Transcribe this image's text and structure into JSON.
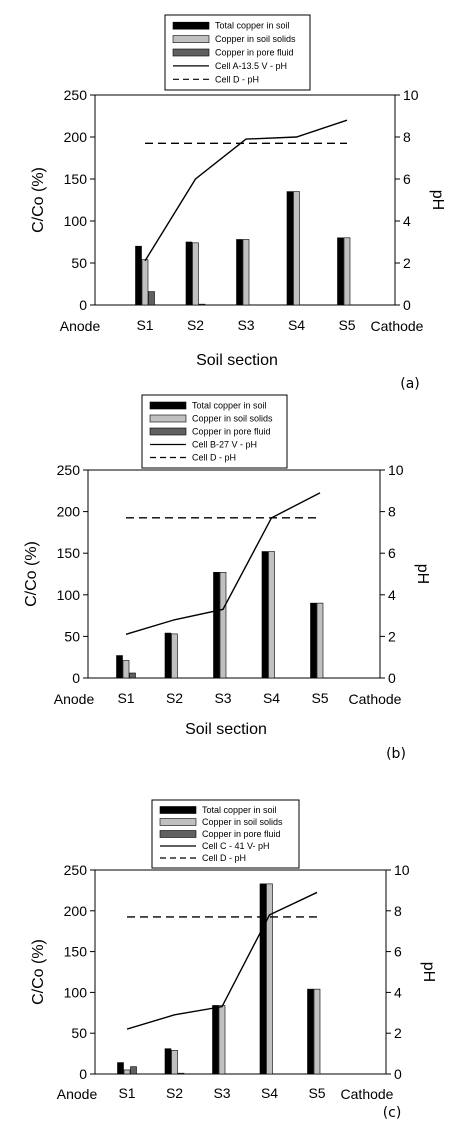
{
  "chart_data": [
    {
      "type": "bar",
      "panel_label": "(a)",
      "categories": [
        "S1",
        "S2",
        "S3",
        "S4",
        "S5"
      ],
      "x_end_labels": [
        "Anode",
        "Cathode"
      ],
      "xlabel": "Soil section",
      "ylabel": "C/Co (%)",
      "y2label": "pH",
      "ylim": [
        0,
        250
      ],
      "y2lim": [
        0,
        10
      ],
      "yticks": [
        "0",
        "50",
        "100",
        "150",
        "200",
        "250"
      ],
      "y2ticks": [
        "0",
        "2",
        "4",
        "6",
        "8",
        "10"
      ],
      "legend_position": "top",
      "series": [
        {
          "name": "Total copper in soil",
          "kind": "bar",
          "color": "#000000",
          "values": [
            70,
            75,
            78,
            135,
            80
          ]
        },
        {
          "name": "Copper in soil solids",
          "kind": "bar",
          "color": "#c0c0c0",
          "values": [
            54,
            74,
            78,
            135,
            80
          ]
        },
        {
          "name": "Copper in pore fluid",
          "kind": "bar",
          "color": "#606060",
          "values": [
            16,
            1,
            0,
            0,
            0
          ]
        },
        {
          "name": "Cell A-13.5 V - pH",
          "kind": "line",
          "style": "solid",
          "values": [
            2.1,
            6.0,
            7.9,
            8.0,
            8.8
          ]
        },
        {
          "name": "Cell D - pH",
          "kind": "line",
          "style": "dashed",
          "values": [
            7.7,
            7.7,
            7.7,
            7.7,
            7.7
          ]
        }
      ]
    },
    {
      "type": "bar",
      "panel_label": "(b)",
      "categories": [
        "S1",
        "S2",
        "S3",
        "S4",
        "S5"
      ],
      "x_end_labels": [
        "Anode",
        "Cathode"
      ],
      "xlabel": "Soil section",
      "ylabel": "C/Co (%)",
      "y2label": "pH",
      "ylim": [
        0,
        250
      ],
      "y2lim": [
        0,
        10
      ],
      "yticks": [
        "0",
        "50",
        "100",
        "150",
        "200",
        "250"
      ],
      "y2ticks": [
        "0",
        "2",
        "4",
        "6",
        "8",
        "10"
      ],
      "legend_position": "top",
      "series": [
        {
          "name": "Total copper in soil",
          "kind": "bar",
          "color": "#000000",
          "values": [
            27,
            54,
            127,
            152,
            90
          ]
        },
        {
          "name": "Copper in soil solids",
          "kind": "bar",
          "color": "#c0c0c0",
          "values": [
            21,
            53,
            127,
            152,
            90
          ]
        },
        {
          "name": "Copper in pore fluid",
          "kind": "bar",
          "color": "#606060",
          "values": [
            6,
            0,
            0,
            0,
            0
          ]
        },
        {
          "name": "Cell B-27 V - pH",
          "kind": "line",
          "style": "solid",
          "values": [
            2.1,
            2.8,
            3.3,
            7.7,
            8.9
          ]
        },
        {
          "name": "Cell D - pH",
          "kind": "line",
          "style": "dashed",
          "values": [
            7.7,
            7.7,
            7.7,
            7.7,
            7.7
          ]
        }
      ]
    },
    {
      "type": "bar",
      "panel_label": "(c)",
      "categories": [
        "S1",
        "S2",
        "S3",
        "S4",
        "S5"
      ],
      "x_end_labels": [
        "Anode",
        "Cathode"
      ],
      "xlabel": "",
      "ylabel": "C/Co (%)",
      "y2label": "pH",
      "ylim": [
        0,
        250
      ],
      "y2lim": [
        0,
        10
      ],
      "yticks": [
        "0",
        "50",
        "100",
        "150",
        "200",
        "250"
      ],
      "y2ticks": [
        "0",
        "2",
        "4",
        "6",
        "8",
        "10"
      ],
      "legend_position": "top",
      "series": [
        {
          "name": "Total copper in soil",
          "kind": "bar",
          "color": "#000000",
          "values": [
            14,
            31,
            84,
            233,
            104
          ]
        },
        {
          "name": "Copper in soil solids",
          "kind": "bar",
          "color": "#c0c0c0",
          "values": [
            5,
            29,
            84,
            233,
            104
          ]
        },
        {
          "name": "Copper in pore fluid",
          "kind": "bar",
          "color": "#606060",
          "values": [
            9,
            1,
            0,
            0,
            0
          ]
        },
        {
          "name": "Cell C - 41 V- pH",
          "kind": "line",
          "style": "solid",
          "values": [
            2.2,
            2.9,
            3.3,
            7.8,
            8.9
          ]
        },
        {
          "name": "Cell D - pH",
          "kind": "line",
          "style": "dashed",
          "values": [
            7.7,
            7.7,
            7.7,
            7.7,
            7.7
          ]
        }
      ]
    }
  ]
}
